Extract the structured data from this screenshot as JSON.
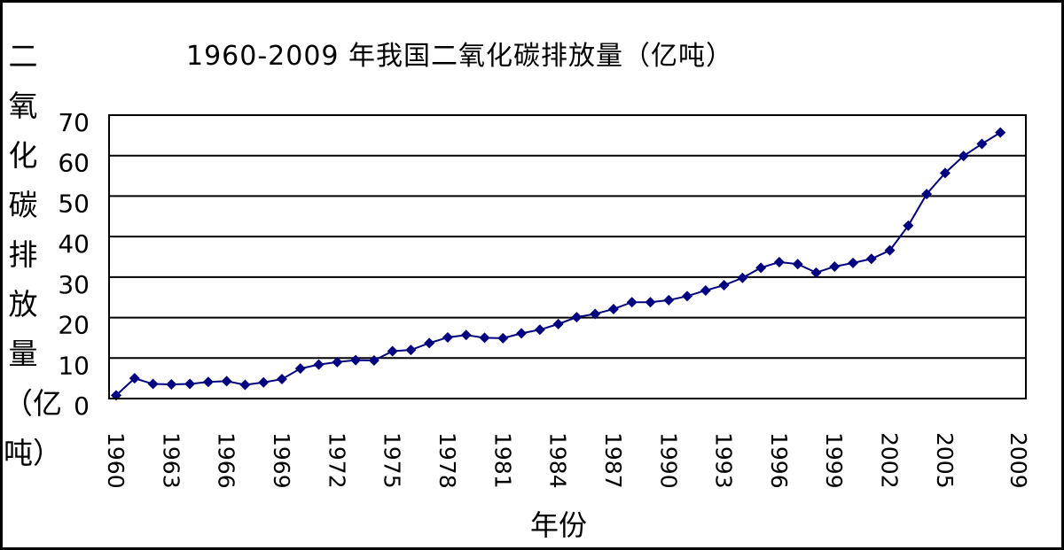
{
  "chart_data": {
    "type": "line",
    "title": "1960-2009 年我国二氧化碳排放量（亿吨）",
    "ylabel": "二氧化碳排放量（亿吨）",
    "xlabel": "年份",
    "ylim": [
      0,
      70
    ],
    "yticks": [
      0,
      10,
      20,
      30,
      40,
      50,
      60,
      70
    ],
    "xticks": [
      "1960",
      "1963",
      "1966",
      "1969",
      "1972",
      "1975",
      "1978",
      "1981",
      "1984",
      "1987",
      "1990",
      "1993",
      "1996",
      "1999",
      "2002",
      "2005",
      "2009"
    ],
    "grid": "horizontal",
    "marker": "diamond",
    "series_color": "#000080",
    "x": [
      1960,
      1961,
      1962,
      1963,
      1964,
      1965,
      1966,
      1967,
      1968,
      1969,
      1970,
      1971,
      1972,
      1973,
      1974,
      1975,
      1976,
      1977,
      1978,
      1979,
      1980,
      1981,
      1982,
      1983,
      1984,
      1985,
      1986,
      1987,
      1988,
      1989,
      1990,
      1991,
      1992,
      1993,
      1994,
      1995,
      1996,
      1997,
      1998,
      1999,
      2000,
      2001,
      2002,
      2003,
      2004,
      2005,
      2006,
      2007,
      2008
    ],
    "values": [
      0.8,
      5.0,
      3.6,
      3.5,
      3.6,
      4.1,
      4.3,
      3.4,
      4.0,
      4.8,
      7.4,
      8.4,
      9.0,
      9.5,
      9.4,
      11.7,
      12.0,
      13.7,
      15.1,
      15.7,
      15.0,
      14.9,
      16.1,
      17.0,
      18.4,
      20.1,
      20.9,
      22.1,
      23.8,
      23.8,
      24.3,
      25.3,
      26.7,
      28.0,
      29.8,
      32.3,
      33.7,
      33.2,
      31.1,
      32.6,
      33.5,
      34.5,
      36.6,
      42.7,
      50.5,
      55.7,
      59.9,
      62.9,
      65.7
    ]
  }
}
